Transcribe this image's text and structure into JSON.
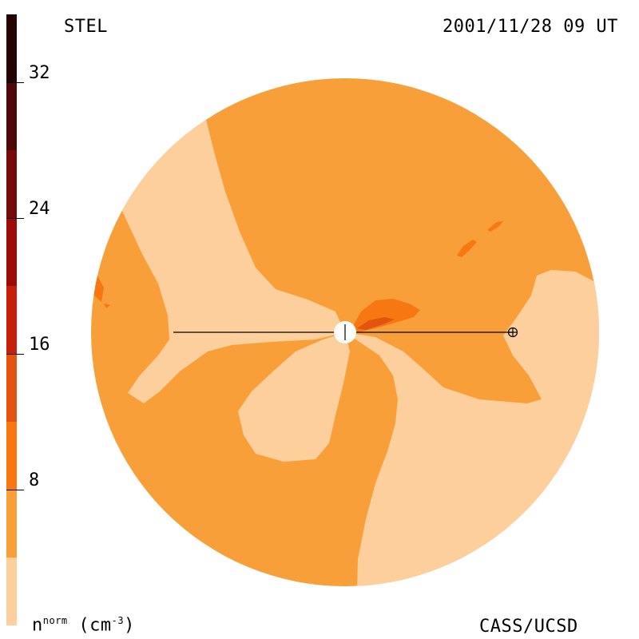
{
  "header": {
    "instrument": "STEL",
    "timestamp": "2001/11/28 09 UT"
  },
  "footer": {
    "quantity": "n",
    "quantity_sup": "norm",
    "unit_open": "(cm",
    "unit_sup": "-3",
    "unit_close": ")",
    "credit": "CASS/UCSD"
  },
  "colorbar": {
    "min": 0,
    "max": 36,
    "levels": [
      {
        "from": 0,
        "to": 4,
        "color": "#fccf9c"
      },
      {
        "from": 4,
        "to": 8,
        "color": "#f99f3a"
      },
      {
        "from": 8,
        "to": 12,
        "color": "#f77712"
      },
      {
        "from": 12,
        "to": 16,
        "color": "#e35410"
      },
      {
        "from": 16,
        "to": 20,
        "color": "#c6200d"
      },
      {
        "from": 20,
        "to": 24,
        "color": "#9c0d0a"
      },
      {
        "from": 24,
        "to": 28,
        "color": "#76090a"
      },
      {
        "from": 28,
        "to": 32,
        "color": "#4f0707"
      },
      {
        "from": 32,
        "to": 36,
        "color": "#240303"
      }
    ],
    "ticks": [
      "8",
      "16",
      "24",
      "32"
    ]
  },
  "colors": {
    "background_density": "#f99f3a",
    "low_density": "#fccf9c",
    "mid_density": "#f77712",
    "high_density": "#e35410",
    "peak_density": "#c6200d"
  }
}
